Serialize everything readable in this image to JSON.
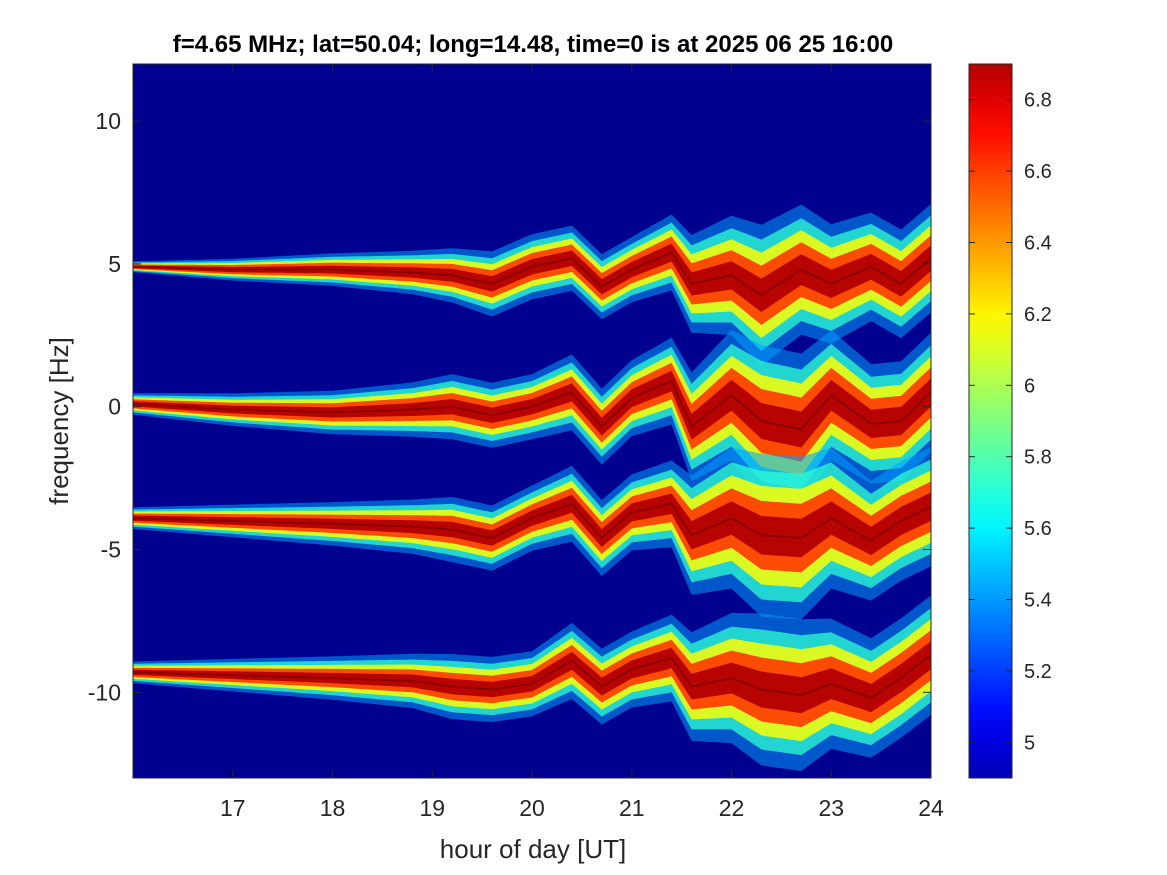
{
  "chart_data": {
    "type": "heatmap",
    "title": "f=4.65 MHz;  lat=50.04; long=14.48, time=0 is at 2025 06 25 16:00",
    "xlabel": "hour of day [UT]",
    "ylabel": "frequency [Hz]",
    "xlim": [
      16,
      24
    ],
    "ylim": [
      -13,
      12
    ],
    "xticks": [
      17,
      18,
      19,
      20,
      21,
      22,
      23,
      24
    ],
    "xtick_labels": [
      "17",
      "18",
      "19",
      "20",
      "21",
      "22",
      "23",
      "24"
    ],
    "yticks": [
      10,
      5,
      0,
      -5,
      -10
    ],
    "ytick_labels": [
      "10",
      "5",
      "0",
      "-5",
      "-10"
    ],
    "colorbar": {
      "range": [
        4.9,
        6.9
      ],
      "ticks": [
        5,
        5.2,
        5.4,
        5.6,
        5.8,
        6,
        6.2,
        6.4,
        6.6,
        6.8
      ],
      "tick_labels": [
        "5",
        "5.2",
        "5.4",
        "5.6",
        "5.8",
        "6",
        "6.2",
        "6.4",
        "6.6",
        "6.8"
      ],
      "colormap": "jet",
      "background_color": "#00008f"
    },
    "traces": [
      {
        "label": "trace near 5 Hz",
        "x": [
          16.0,
          17.0,
          18.0,
          18.8,
          19.2,
          19.6,
          20.0,
          20.4,
          20.7,
          21.0,
          21.4,
          21.6,
          22.0,
          22.3,
          22.7,
          23.0,
          23.4,
          23.7,
          24.0
        ],
        "y": [
          4.9,
          4.8,
          4.8,
          4.7,
          4.6,
          4.3,
          4.9,
          5.2,
          4.2,
          4.8,
          5.4,
          4.3,
          4.6,
          3.9,
          4.8,
          4.3,
          4.9,
          4.3,
          5.2
        ],
        "spread_hz": [
          0.1,
          0.2,
          0.3,
          0.4,
          0.5,
          0.6,
          0.6,
          0.6,
          0.6,
          0.6,
          0.7,
          0.9,
          1.1,
          1.3,
          1.2,
          1.1,
          1.0,
          1.0,
          1.0
        ]
      },
      {
        "label": "trace near 0 Hz",
        "x": [
          16.0,
          17.0,
          18.0,
          18.8,
          19.2,
          19.6,
          20.0,
          20.4,
          20.7,
          21.0,
          21.4,
          21.6,
          22.0,
          22.3,
          22.7,
          23.0,
          23.4,
          23.7,
          24.0
        ],
        "y": [
          0.1,
          -0.1,
          -0.2,
          -0.1,
          0.0,
          -0.3,
          0.0,
          0.5,
          -0.7,
          0.3,
          0.9,
          -0.7,
          0.4,
          -0.5,
          -0.8,
          0.4,
          -0.6,
          -0.5,
          0.5
        ],
        "spread_hz": [
          0.2,
          0.3,
          0.4,
          0.5,
          0.6,
          0.6,
          0.6,
          0.7,
          0.7,
          0.7,
          0.8,
          1.0,
          1.2,
          1.4,
          1.4,
          1.2,
          1.1,
          1.1,
          1.1
        ]
      },
      {
        "label": "trace near -4 Hz",
        "x": [
          16.0,
          17.0,
          18.0,
          18.8,
          19.2,
          19.6,
          20.0,
          20.4,
          20.7,
          21.0,
          21.4,
          21.6,
          22.0,
          22.3,
          22.7,
          23.0,
          23.4,
          23.7,
          24.0
        ],
        "y": [
          -3.9,
          -4.0,
          -4.1,
          -4.2,
          -4.3,
          -4.6,
          -3.9,
          -3.4,
          -4.6,
          -3.7,
          -3.4,
          -4.5,
          -3.9,
          -4.5,
          -4.6,
          -3.9,
          -4.7,
          -4.0,
          -3.5
        ],
        "spread_hz": [
          0.2,
          0.3,
          0.4,
          0.5,
          0.6,
          0.6,
          0.6,
          0.7,
          0.7,
          0.7,
          0.8,
          1.1,
          1.3,
          1.5,
          1.5,
          1.3,
          1.1,
          1.1,
          1.1
        ]
      },
      {
        "label": "trace near -9 Hz",
        "x": [
          16.0,
          17.0,
          18.0,
          18.8,
          19.2,
          19.6,
          20.0,
          20.4,
          20.7,
          21.0,
          21.4,
          21.6,
          22.0,
          22.3,
          22.7,
          23.0,
          23.4,
          23.7,
          24.0
        ],
        "y": [
          -9.3,
          -9.4,
          -9.5,
          -9.6,
          -9.8,
          -9.9,
          -9.7,
          -8.9,
          -9.8,
          -9.2,
          -8.8,
          -9.8,
          -9.5,
          -9.9,
          -10.1,
          -9.7,
          -10.2,
          -9.5,
          -8.7
        ],
        "spread_hz": [
          0.2,
          0.3,
          0.4,
          0.5,
          0.6,
          0.6,
          0.6,
          0.7,
          0.7,
          0.7,
          0.8,
          1.0,
          1.2,
          1.4,
          1.4,
          1.2,
          1.1,
          1.1,
          1.1
        ]
      }
    ]
  }
}
